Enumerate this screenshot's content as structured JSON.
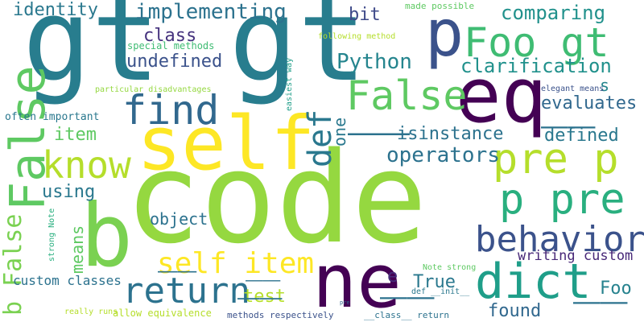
{
  "words": [
    {
      "text": "code",
      "color": "#95d840",
      "vertical": false
    },
    {
      "text": "gt gt",
      "color": "#287d8e",
      "vertical": false
    },
    {
      "text": "self",
      "color": "#fde725",
      "vertical": false
    },
    {
      "text": "eq",
      "color": "#440154",
      "vertical": false
    },
    {
      "text": "ne",
      "color": "#440154",
      "vertical": false
    },
    {
      "text": "p",
      "color": "#3b528b",
      "vertical": false
    },
    {
      "text": "Foo gt",
      "color": "#3fbc73",
      "vertical": false
    },
    {
      "text": "b",
      "color": "#7ad151",
      "vertical": false
    },
    {
      "text": "dict",
      "color": "#1f9e89",
      "vertical": false
    },
    {
      "text": "pre p",
      "color": "#b5de2b",
      "vertical": false
    },
    {
      "text": "p pre",
      "color": "#29af7f",
      "vertical": false
    },
    {
      "text": "False",
      "color": "#5ec962",
      "vertical": false
    },
    {
      "text": "find",
      "color": "#31688e",
      "vertical": false
    },
    {
      "text": "return",
      "color": "#2c728e",
      "vertical": false
    },
    {
      "text": "behavior",
      "color": "#3b528b",
      "vertical": false
    },
    {
      "text": "know",
      "color": "#b5de2b",
      "vertical": false
    },
    {
      "text": "self item",
      "color": "#fde725",
      "vertical": false
    },
    {
      "text": "False",
      "color": "#5ec962",
      "vertical": true
    },
    {
      "text": "b False",
      "color": "#7ad151",
      "vertical": true
    },
    {
      "text": "def",
      "color": "#2a788e",
      "vertical": true
    },
    {
      "text": "implementing",
      "color": "#2c728e",
      "vertical": false
    },
    {
      "text": "comparing",
      "color": "#21918c",
      "vertical": false
    },
    {
      "text": "identity",
      "color": "#2a788e",
      "vertical": false
    },
    {
      "text": "Python",
      "color": "#25858e",
      "vertical": false
    },
    {
      "text": "clarification",
      "color": "#21918c",
      "vertical": false
    },
    {
      "text": "undefined",
      "color": "#3b528b",
      "vertical": false
    },
    {
      "text": "class",
      "color": "#46337e",
      "vertical": false
    },
    {
      "text": "bit",
      "color": "#3e4989",
      "vertical": false
    },
    {
      "text": "evaluates",
      "color": "#31688e",
      "vertical": false
    },
    {
      "text": "isinstance",
      "color": "#2c728e",
      "vertical": false
    },
    {
      "text": "defined",
      "color": "#2a788e",
      "vertical": false
    },
    {
      "text": "operators",
      "color": "#2c728e",
      "vertical": false
    },
    {
      "text": "item",
      "color": "#5ec962",
      "vertical": false
    },
    {
      "text": "using",
      "color": "#2a788e",
      "vertical": false
    },
    {
      "text": "object",
      "color": "#2c728e",
      "vertical": false
    },
    {
      "text": "s",
      "color": "#25858e",
      "vertical": false
    },
    {
      "text": "one",
      "color": "#2a788e",
      "vertical": true
    },
    {
      "text": "means",
      "color": "#5ec962",
      "vertical": true
    },
    {
      "text": "writing custom",
      "color": "#482878",
      "vertical": false
    },
    {
      "text": "test",
      "color": "#b5de2b",
      "vertical": false
    },
    {
      "text": "True",
      "color": "#2a788e",
      "vertical": false
    },
    {
      "text": "e",
      "color": "#472d7b",
      "vertical": false
    },
    {
      "text": "Foo",
      "color": "#26828e",
      "vertical": false
    },
    {
      "text": "found",
      "color": "#31688e",
      "vertical": false
    },
    {
      "text": "custom classes",
      "color": "#2c728e",
      "vertical": false
    },
    {
      "text": "often important",
      "color": "#2a788e",
      "vertical": false
    },
    {
      "text": "special methods",
      "color": "#3fbc73",
      "vertical": false
    },
    {
      "text": "made possible",
      "color": "#5ec962",
      "vertical": false
    },
    {
      "text": "following method",
      "color": "#b5de2b",
      "vertical": false
    },
    {
      "text": "particular disadvantages",
      "color": "#95d840",
      "vertical": false
    },
    {
      "text": "elegant means",
      "color": "#3b528b",
      "vertical": false
    },
    {
      "text": "easiest way",
      "color": "#1f9e89",
      "vertical": true
    },
    {
      "text": "strong Note",
      "color": "#29af7f",
      "vertical": true
    },
    {
      "text": "Note strong",
      "color": "#5ec962",
      "vertical": false
    },
    {
      "text": "def __init__",
      "color": "#2a788e",
      "vertical": false
    },
    {
      "text": "really runs",
      "color": "#b5de2b",
      "vertical": false
    },
    {
      "text": "allow equivalence",
      "color": "#b5de2b",
      "vertical": false
    },
    {
      "text": "methods respectively",
      "color": "#3b528b",
      "vertical": false
    },
    {
      "text": "__class__ return",
      "color": "#2c728e",
      "vertical": false
    },
    {
      "text": "pre",
      "color": "#31688e",
      "vertical": false
    },
    {
      "text": "__",
      "color": "#2c728e",
      "vertical": false
    }
  ]
}
